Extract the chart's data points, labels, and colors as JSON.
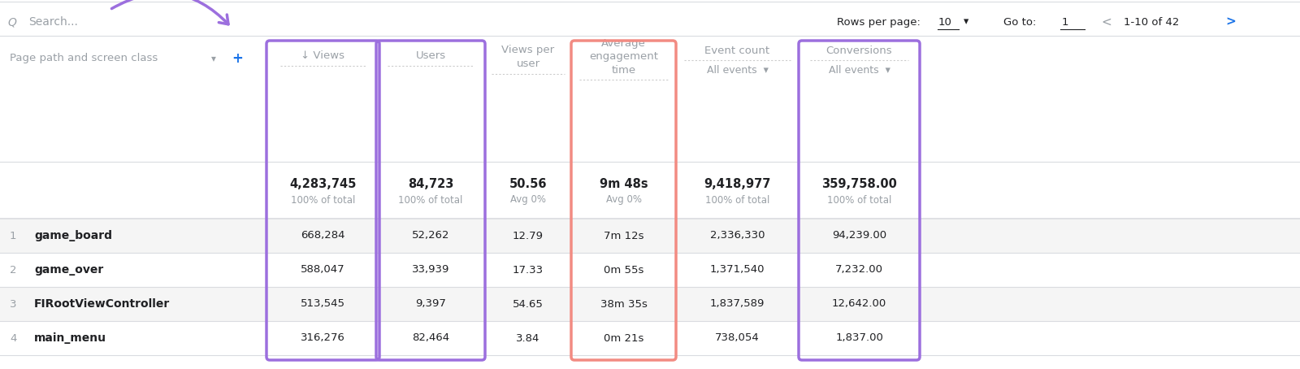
{
  "bg_color": "#ffffff",
  "row_alt_bg": "#f5f5f5",
  "row_bg": "#ffffff",
  "border_color": "#dadce0",
  "text_dark": "#202124",
  "text_gray": "#9aa0a6",
  "text_blue": "#1a73e8",
  "purple": "#9c6fde",
  "pink": "#f28b82",
  "search_text": "Search...",
  "arrow_color": "#9c6fde",
  "rows_per_page_label": "Rows per page:",
  "rows_per_page_value": "10",
  "go_to_label": "Go to:",
  "go_to_value": "1",
  "pagination": "1-10 of 42",
  "rows": [
    [
      "1",
      "game_board",
      "668,284",
      "52,262",
      "12.79",
      "7m 12s",
      "2,336,330",
      "94,239.00"
    ],
    [
      "2",
      "game_over",
      "588,047",
      "33,939",
      "17.33",
      "0m 55s",
      "1,371,540",
      "7,232.00"
    ],
    [
      "3",
      "FIRootViewController",
      "513,545",
      "9,397",
      "54.65",
      "38m 35s",
      "1,837,589",
      "12,642.00"
    ],
    [
      "4",
      "main_menu",
      "316,276",
      "82,464",
      "3.84",
      "0m 21s",
      "738,054",
      "1,837.00"
    ]
  ],
  "fig_width": 16.0,
  "fig_height": 4.54
}
